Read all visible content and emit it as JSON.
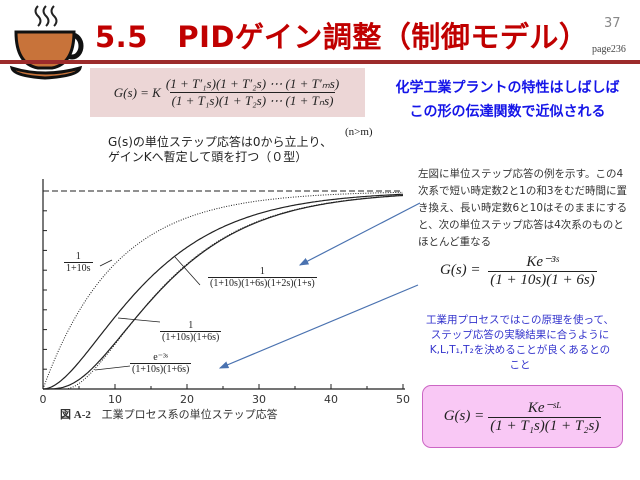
{
  "header": {
    "title": "5.5　PIDゲイン調整（制御モデル）",
    "slide_number": "37",
    "page_ref": "page236",
    "icon": "coffee-cup-icon",
    "title_color": "#c00000",
    "rule_color": "#9c2b2b"
  },
  "formula_general": {
    "lhs": "G(s) = K",
    "numerator": "(1 + T′₁s)(1 + T′₂s) ⋯ (1 + T′ₘs)",
    "denominator": "(1 + T₁s)(1 + T₂s) ⋯ (1 + Tₙs)",
    "condition": "(n>m)",
    "box_color": "#ecd6d6"
  },
  "headline": {
    "line1": "化学工業プラントの特性はしばしば",
    "line2": "この形の伝達関数で近似される",
    "color": "#1515e8"
  },
  "step_description": {
    "line1": "G(s)の単位ステップ応答は0から立上り、",
    "line2": "ゲインKへ暫定して頭を打つ（０型）"
  },
  "explanation": {
    "text": "左図に単位ステップ応答の例を示す。この4次系で短い時定数2と1の和3をむだ時間に置き換え、長い時定数6と10はそのままにすると、次の単位ステップ応答は4次系のものとほとんど重なる"
  },
  "formula_approx": {
    "lhs": "G(s) =",
    "numerator": "Ke⁻³ˢ",
    "denominator": "(1 + 10s)(1 + 6s)"
  },
  "industrial_note": {
    "line1": "工業用プロセスではこの原理を使って、",
    "line2": "ステップ応答の実験結果に合うように",
    "line3": "K,L,T₁,T₂を決めることが良くあるとの",
    "line4": "こと",
    "color": "#3333cc"
  },
  "formula_model": {
    "lhs": "G(s) =",
    "numerator": "Ke⁻ˢᴸ",
    "denominator": "(1 + T₁s)(1 + T₂s)",
    "box_color": "#f9c8f5",
    "border_color": "#cc66c4"
  },
  "chart_data": {
    "type": "line",
    "caption_label": "図 A-2",
    "caption_text": "工業プロセス系の単位ステップ応答",
    "xlim": [
      0,
      50
    ],
    "ylim": [
      0,
      1
    ],
    "x_ticks": [
      "0",
      "10",
      "20",
      "30",
      "40",
      "50"
    ],
    "reference_line": 1,
    "series": [
      {
        "name_num": "1",
        "name_den": "1+10s",
        "model": "first_order",
        "time_constants": [
          10
        ],
        "delay": 0,
        "style": "dotted"
      },
      {
        "name_num": "1",
        "name_den": "(1+10s)(1+6s)",
        "model": "lag_chain",
        "time_constants": [
          10,
          6
        ],
        "delay": 0,
        "style": "solid"
      },
      {
        "name_num": "1",
        "name_den": "(1+10s)(1+6s)(1+2s)(1+s)",
        "model": "lag_chain",
        "time_constants": [
          10,
          6,
          2,
          1
        ],
        "delay": 0,
        "style": "solid"
      },
      {
        "name_num": "e⁻³ˢ",
        "name_den": "(1+10s)(1+6s)",
        "model": "lag_chain",
        "time_constants": [
          10,
          6
        ],
        "delay": 3,
        "style": "dotted"
      }
    ],
    "grid": false
  }
}
